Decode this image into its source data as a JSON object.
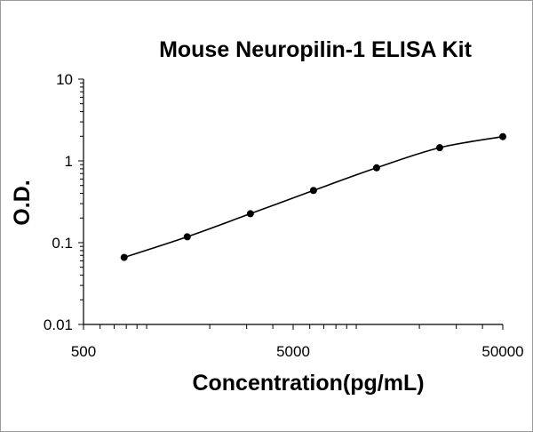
{
  "chart_data": {
    "type": "scatter",
    "title": "Mouse Neuropilin-1 ELISA Kit",
    "xlabel": "Concentration(pg/mL)",
    "ylabel": "O.D.",
    "x_scale": "log",
    "y_scale": "log",
    "xlim": [
      500,
      50000
    ],
    "ylim": [
      0.01,
      10
    ],
    "x_ticks": [
      500,
      5000,
      50000
    ],
    "x_tick_labels": [
      "500",
      "5000",
      "50000"
    ],
    "y_ticks": [
      0.01,
      0.1,
      1,
      10
    ],
    "y_tick_labels": [
      "0.01",
      "0.1",
      "1",
      "10"
    ],
    "grid": false,
    "legend": "none",
    "series": [
      {
        "x": [
          781.25,
          1562.5,
          3125,
          6250,
          12500,
          25000,
          50000
        ],
        "y": [
          0.066,
          0.118,
          0.226,
          0.435,
          0.823,
          1.45,
          1.98
        ],
        "marker": "circle",
        "trendline": "smooth",
        "color": "#000000"
      }
    ]
  }
}
